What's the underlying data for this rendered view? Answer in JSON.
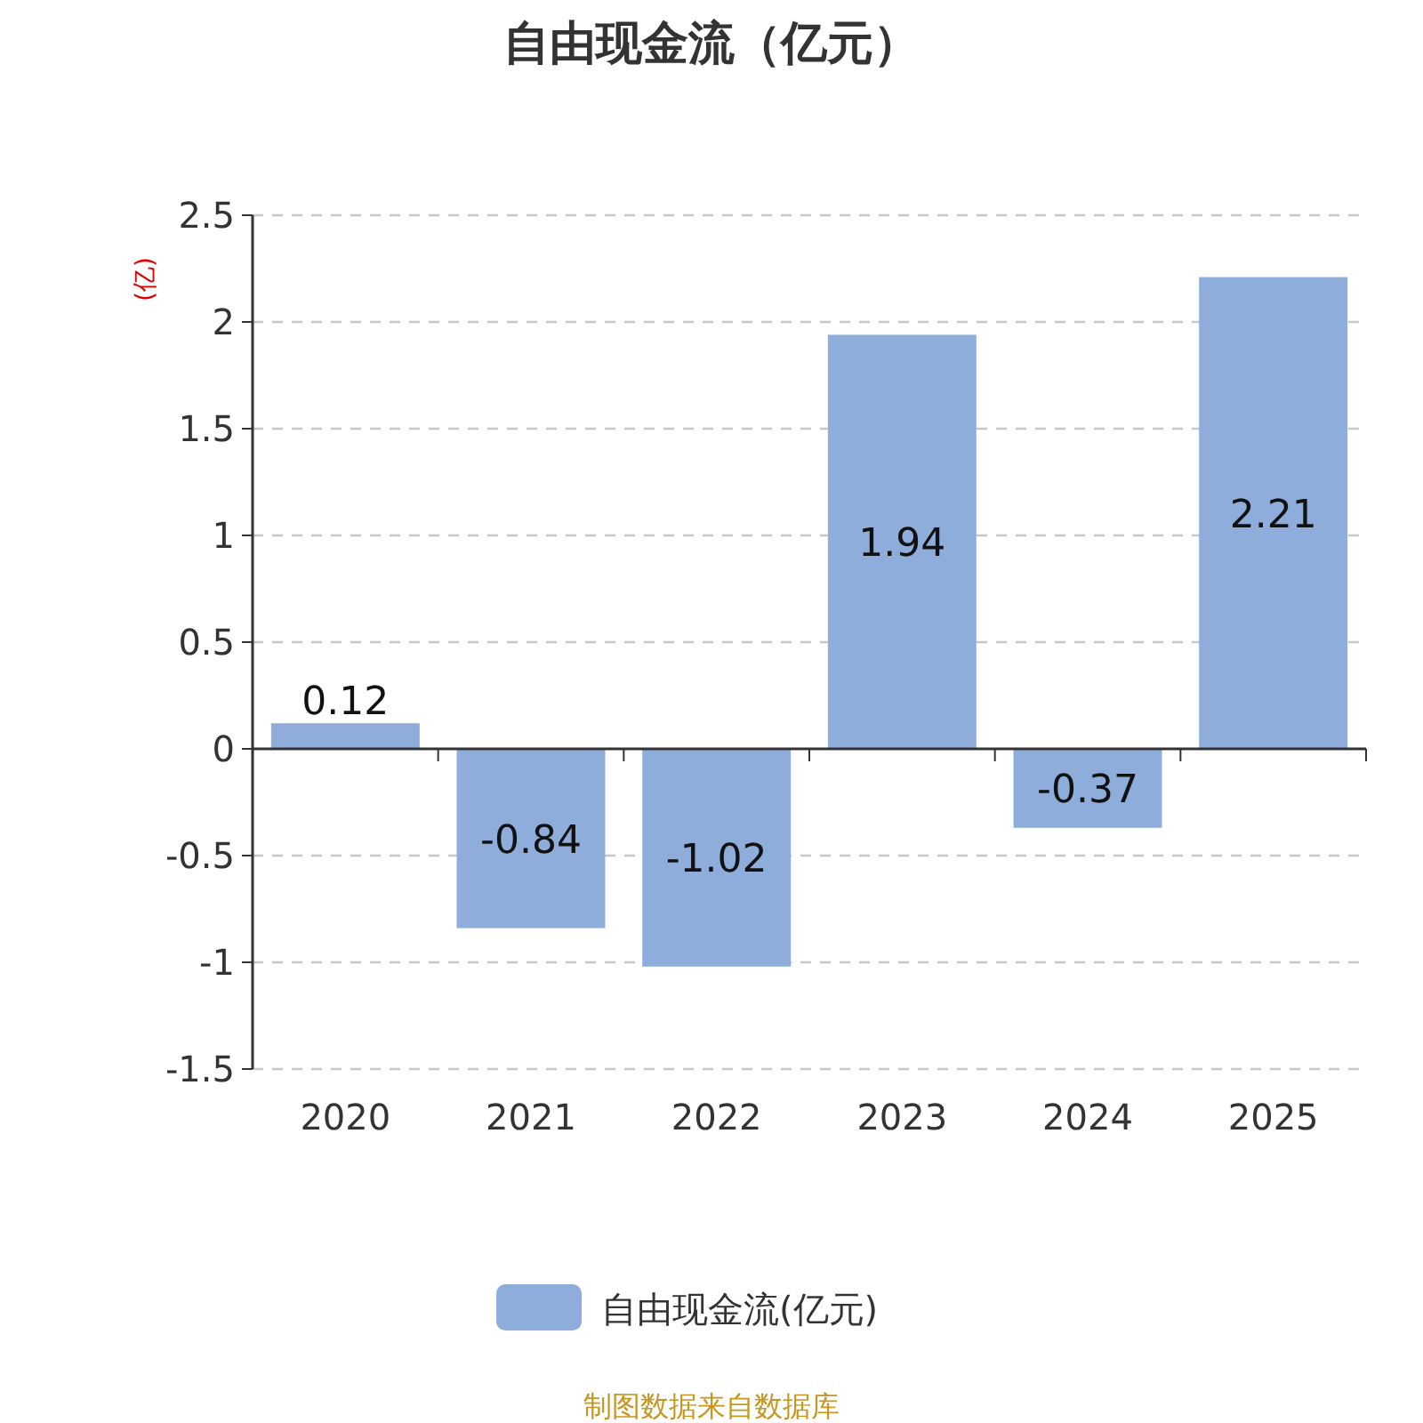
{
  "chart_data": {
    "type": "bar",
    "title": "自由现金流（亿元）",
    "ylabel": "(亿)",
    "categories": [
      "2020",
      "2021",
      "2022",
      "2023",
      "2024",
      "2025"
    ],
    "series": [
      {
        "name": "自由现金流(亿元)",
        "color": "#8eaddb",
        "values": [
          0.12,
          -0.84,
          -1.02,
          1.94,
          -0.37,
          2.21
        ]
      }
    ],
    "ylim": [
      -1.5,
      2.5
    ],
    "yticks": [
      -1.5,
      -1,
      -0.5,
      0,
      0.5,
      1,
      1.5,
      2,
      2.5
    ],
    "grid": "y",
    "legend": "bottom",
    "data_labels": true,
    "annotations": [
      "制图数据来自数据库"
    ]
  }
}
